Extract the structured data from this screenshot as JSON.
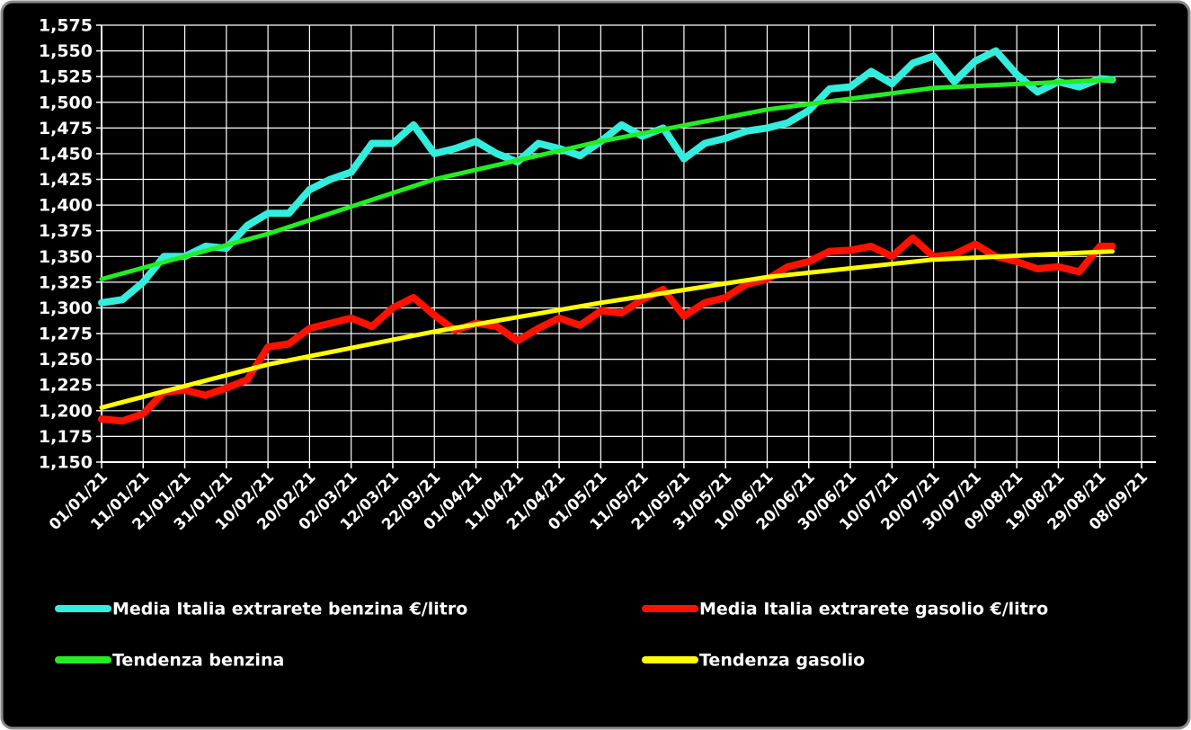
{
  "chart_data": {
    "type": "line",
    "x": [
      "2021-01-01",
      "2021-01-06",
      "2021-01-11",
      "2021-01-16",
      "2021-01-21",
      "2021-01-26",
      "2021-01-31",
      "2021-02-05",
      "2021-02-10",
      "2021-02-15",
      "2021-02-20",
      "2021-02-25",
      "2021-03-02",
      "2021-03-07",
      "2021-03-12",
      "2021-03-17",
      "2021-03-22",
      "2021-03-27",
      "2021-04-01",
      "2021-04-06",
      "2021-04-11",
      "2021-04-16",
      "2021-04-21",
      "2021-04-26",
      "2021-05-01",
      "2021-05-06",
      "2021-05-11",
      "2021-05-16",
      "2021-05-21",
      "2021-05-26",
      "2021-05-31",
      "2021-06-05",
      "2021-06-10",
      "2021-06-15",
      "2021-06-20",
      "2021-06-25",
      "2021-06-30",
      "2021-07-05",
      "2021-07-10",
      "2021-07-15",
      "2021-07-20",
      "2021-07-25",
      "2021-07-30",
      "2021-08-04",
      "2021-08-09",
      "2021-08-14",
      "2021-08-19",
      "2021-08-24",
      "2021-08-29",
      "2021-09-01"
    ],
    "series": [
      {
        "name": "Media Italia extrarete benzina €/litro",
        "color": "#33eedd",
        "width": 8,
        "values": [
          1.305,
          1.308,
          1.325,
          1.35,
          1.35,
          1.36,
          1.358,
          1.38,
          1.392,
          1.392,
          1.415,
          1.425,
          1.432,
          1.46,
          1.46,
          1.478,
          1.45,
          1.455,
          1.462,
          1.45,
          1.442,
          1.46,
          1.455,
          1.448,
          1.462,
          1.478,
          1.467,
          1.475,
          1.445,
          1.46,
          1.465,
          1.472,
          1.475,
          1.48,
          1.492,
          1.513,
          1.515,
          1.53,
          1.518,
          1.538,
          1.545,
          1.52,
          1.54,
          1.55,
          1.527,
          1.51,
          1.52,
          1.515,
          1.523,
          1.522
        ]
      },
      {
        "name": "Media Italia extrarete gasolio €/litro",
        "color": "#ff1100",
        "width": 8,
        "values": [
          1.192,
          1.19,
          1.197,
          1.218,
          1.22,
          1.215,
          1.222,
          1.23,
          1.262,
          1.265,
          1.28,
          1.285,
          1.29,
          1.282,
          1.3,
          1.31,
          1.293,
          1.278,
          1.285,
          1.282,
          1.268,
          1.28,
          1.29,
          1.283,
          1.297,
          1.295,
          1.308,
          1.318,
          1.292,
          1.305,
          1.31,
          1.323,
          1.328,
          1.34,
          1.345,
          1.355,
          1.356,
          1.36,
          1.35,
          1.368,
          1.35,
          1.352,
          1.362,
          1.35,
          1.345,
          1.338,
          1.34,
          1.335,
          1.36,
          1.36
        ]
      },
      {
        "name": "Tendenza benzina",
        "color": "#22ee22",
        "width": 5,
        "x": [
          "2021-01-01",
          "2021-02-10",
          "2021-03-22",
          "2021-05-01",
          "2021-06-10",
          "2021-07-20",
          "2021-09-01"
        ],
        "values": [
          1.328,
          1.372,
          1.425,
          1.462,
          1.493,
          1.514,
          1.522
        ]
      },
      {
        "name": "Tendenza gasolio",
        "color": "#ffff00",
        "width": 5,
        "x": [
          "2021-01-01",
          "2021-02-10",
          "2021-03-22",
          "2021-05-01",
          "2021-06-10",
          "2021-07-20",
          "2021-09-01"
        ],
        "values": [
          1.203,
          1.245,
          1.277,
          1.305,
          1.33,
          1.347,
          1.355
        ]
      }
    ],
    "xlim": [
      "2021-01-01",
      "2021-09-08"
    ],
    "xticks": [
      {
        "value": "2021-01-01",
        "label": "01/01/21"
      },
      {
        "value": "2021-01-11",
        "label": "11/01/21"
      },
      {
        "value": "2021-01-21",
        "label": "21/01/21"
      },
      {
        "value": "2021-01-31",
        "label": "31/01/21"
      },
      {
        "value": "2021-02-10",
        "label": "10/02/21"
      },
      {
        "value": "2021-02-20",
        "label": "20/02/21"
      },
      {
        "value": "2021-03-02",
        "label": "02/03/21"
      },
      {
        "value": "2021-03-12",
        "label": "12/03/21"
      },
      {
        "value": "2021-03-22",
        "label": "22/03/21"
      },
      {
        "value": "2021-04-01",
        "label": "01/04/21"
      },
      {
        "value": "2021-04-11",
        "label": "11/04/21"
      },
      {
        "value": "2021-04-21",
        "label": "21/04/21"
      },
      {
        "value": "2021-05-01",
        "label": "01/05/21"
      },
      {
        "value": "2021-05-11",
        "label": "11/05/21"
      },
      {
        "value": "2021-05-21",
        "label": "21/05/21"
      },
      {
        "value": "2021-05-31",
        "label": "31/05/21"
      },
      {
        "value": "2021-06-10",
        "label": "10/06/21"
      },
      {
        "value": "2021-06-20",
        "label": "20/06/21"
      },
      {
        "value": "2021-06-30",
        "label": "30/06/21"
      },
      {
        "value": "2021-07-10",
        "label": "10/07/21"
      },
      {
        "value": "2021-07-20",
        "label": "20/07/21"
      },
      {
        "value": "2021-07-30",
        "label": "30/07/21"
      },
      {
        "value": "2021-08-09",
        "label": "09/08/21"
      },
      {
        "value": "2021-08-19",
        "label": "19/08/21"
      },
      {
        "value": "2021-08-29",
        "label": "29/08/21"
      },
      {
        "value": "2021-09-08",
        "label": "08/09/21"
      }
    ],
    "ylim": [
      1.15,
      1.575
    ],
    "yticks": [
      {
        "value": 1.15,
        "label": "1,150"
      },
      {
        "value": 1.175,
        "label": "1,175"
      },
      {
        "value": 1.2,
        "label": "1,200"
      },
      {
        "value": 1.225,
        "label": "1,225"
      },
      {
        "value": 1.25,
        "label": "1,250"
      },
      {
        "value": 1.275,
        "label": "1,275"
      },
      {
        "value": 1.3,
        "label": "1,300"
      },
      {
        "value": 1.325,
        "label": "1,325"
      },
      {
        "value": 1.35,
        "label": "1,350"
      },
      {
        "value": 1.375,
        "label": "1,375"
      },
      {
        "value": 1.4,
        "label": "1,400"
      },
      {
        "value": 1.425,
        "label": "1,425"
      },
      {
        "value": 1.45,
        "label": "1,450"
      },
      {
        "value": 1.475,
        "label": "1,475"
      },
      {
        "value": 1.5,
        "label": "1,500"
      },
      {
        "value": 1.525,
        "label": "1,525"
      },
      {
        "value": 1.55,
        "label": "1,550"
      },
      {
        "value": 1.575,
        "label": "1,575"
      }
    ],
    "grid": true,
    "legend": "bottom"
  }
}
